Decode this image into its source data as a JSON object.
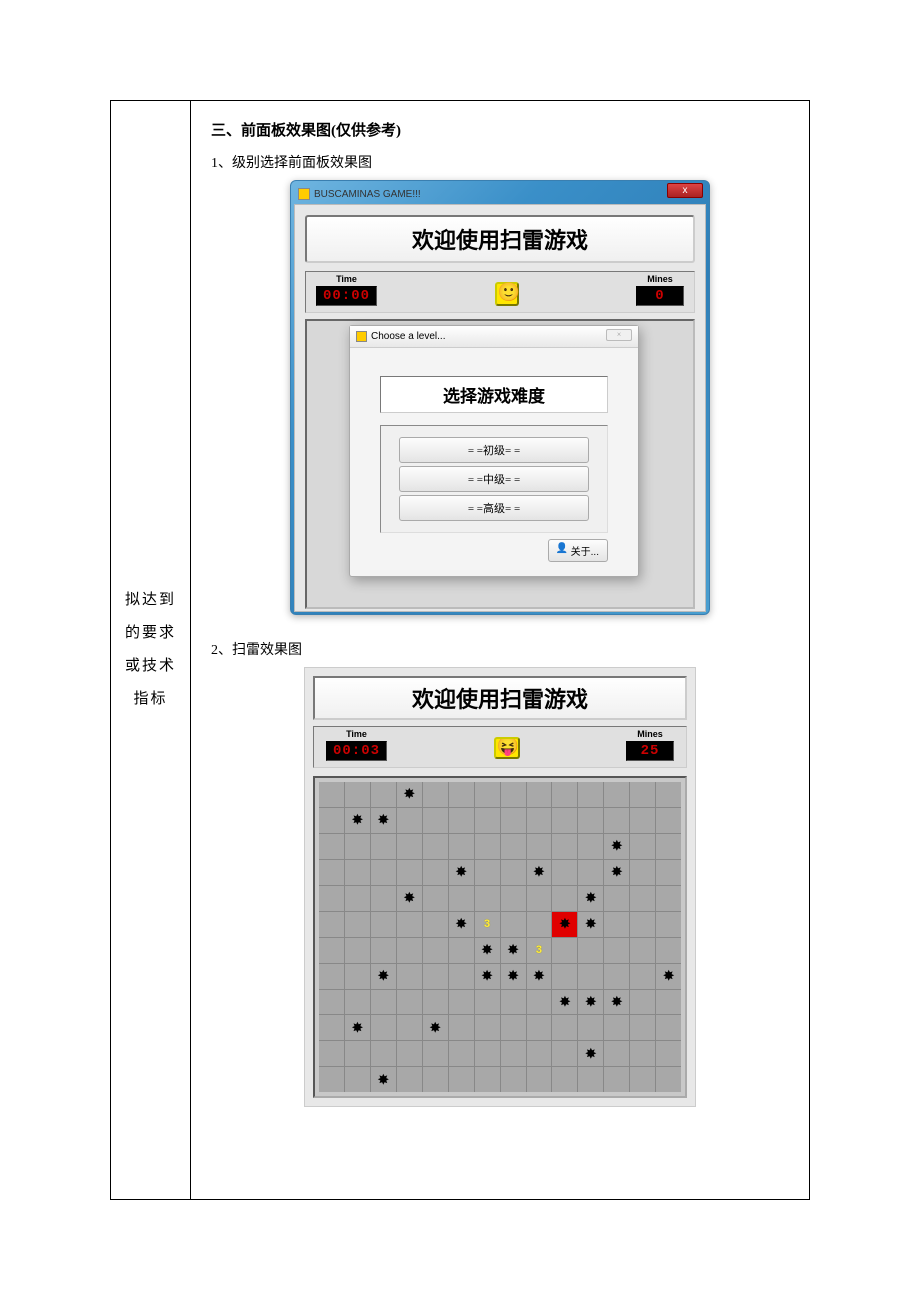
{
  "side_label": "拟达到的要求或技术指标",
  "section_title": "三、前面板效果图(仅供参考)",
  "sub1": "1、级别选择前面板效果图",
  "sub2": "2、扫雷效果图",
  "shot1": {
    "window_title": "BUSCAMINAS GAME!!!",
    "close_x": "x",
    "banner": "欢迎使用扫雷游戏",
    "time_label": "Time",
    "time_value": "00:00",
    "mines_label": "Mines",
    "mines_value": "0",
    "dlg_title": "Choose a level...",
    "dlg_close": "×",
    "dlg_heading": "选择游戏难度",
    "btn1": "= =初级= =",
    "btn2": "= =中级= =",
    "btn3": "= =高级= =",
    "about": "关于..."
  },
  "shot2": {
    "banner": "欢迎使用扫雷游戏",
    "time_label": "Time",
    "time_value": "00:03",
    "mines_label": "Mines",
    "mines_value": "25",
    "cols": 14,
    "rows": 12,
    "mines": [
      [
        0,
        3
      ],
      [
        1,
        1
      ],
      [
        1,
        2
      ],
      [
        2,
        11
      ],
      [
        3,
        5
      ],
      [
        3,
        8
      ],
      [
        3,
        11
      ],
      [
        4,
        3
      ],
      [
        4,
        10
      ],
      [
        5,
        5
      ],
      [
        5,
        10
      ],
      [
        6,
        6
      ],
      [
        6,
        7
      ],
      [
        7,
        2
      ],
      [
        7,
        6
      ],
      [
        7,
        7
      ],
      [
        7,
        8
      ],
      [
        7,
        13
      ],
      [
        8,
        9
      ],
      [
        8,
        10
      ],
      [
        8,
        11
      ],
      [
        9,
        1
      ],
      [
        9,
        4
      ],
      [
        10,
        10
      ],
      [
        11,
        2
      ]
    ],
    "boom": [
      5,
      9
    ],
    "numbers": [
      {
        "r": 5,
        "c": 6,
        "n": "3"
      },
      {
        "r": 6,
        "c": 8,
        "n": "3"
      }
    ]
  }
}
